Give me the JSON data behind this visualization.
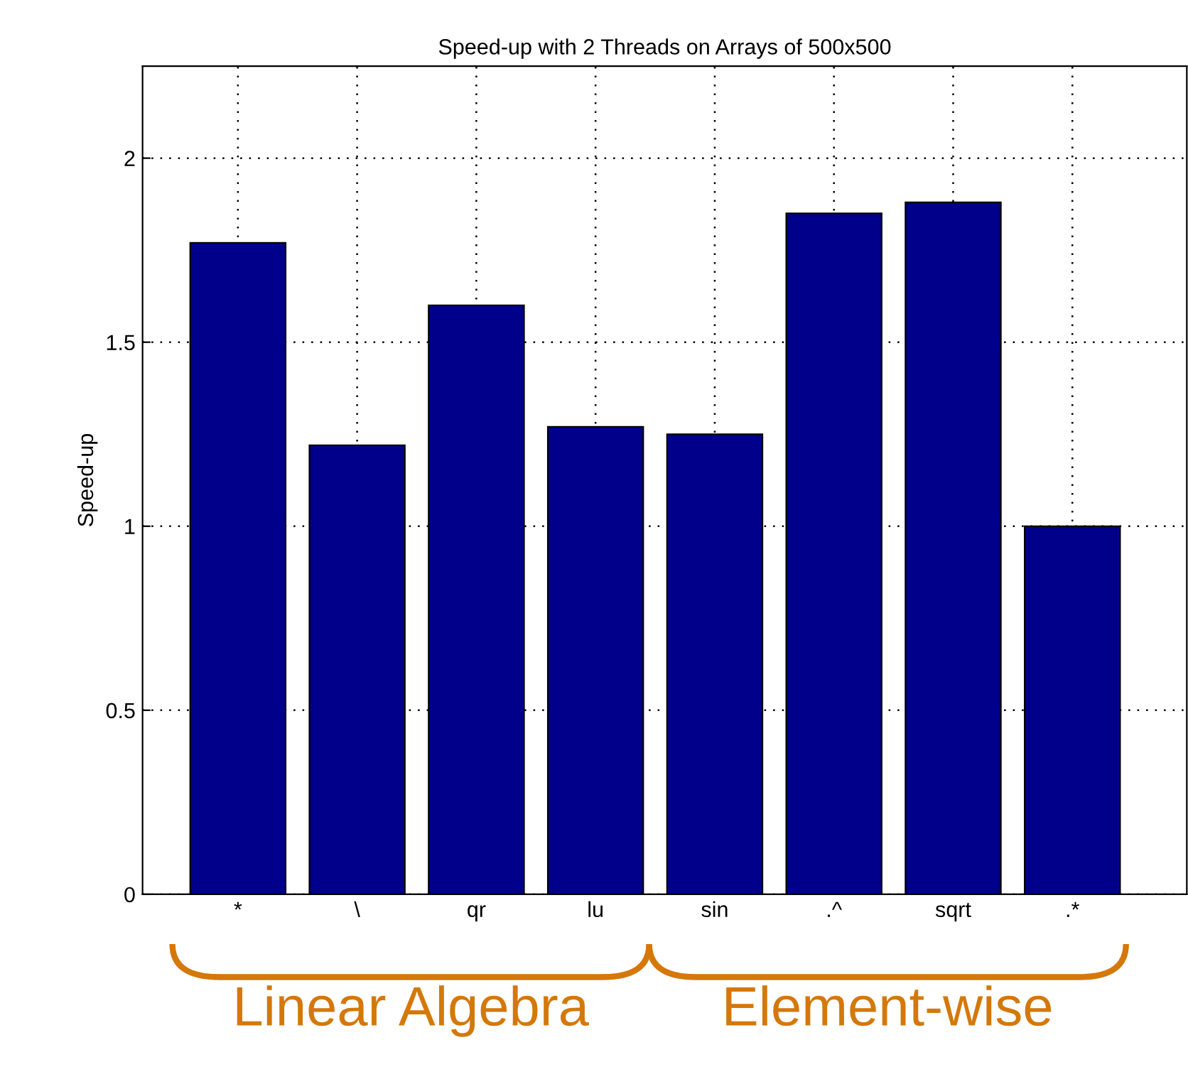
{
  "chart_data": {
    "type": "bar",
    "title": "Speed-up with 2 Threads on Arrays of 500x500",
    "ylabel": "Speed-up",
    "categories": [
      "*",
      "\\",
      "qr",
      "lu",
      "sin",
      ".^",
      "sqrt",
      ".*"
    ],
    "values": [
      1.77,
      1.22,
      1.6,
      1.27,
      1.25,
      1.85,
      1.88,
      1.0
    ],
    "color": "#00008b",
    "ylim": [
      0,
      2.25
    ],
    "yticks": [
      0,
      0.5,
      1,
      1.5,
      2
    ],
    "grid": true,
    "annotations": [
      "Linear Algebra",
      "Element-wise"
    ]
  }
}
